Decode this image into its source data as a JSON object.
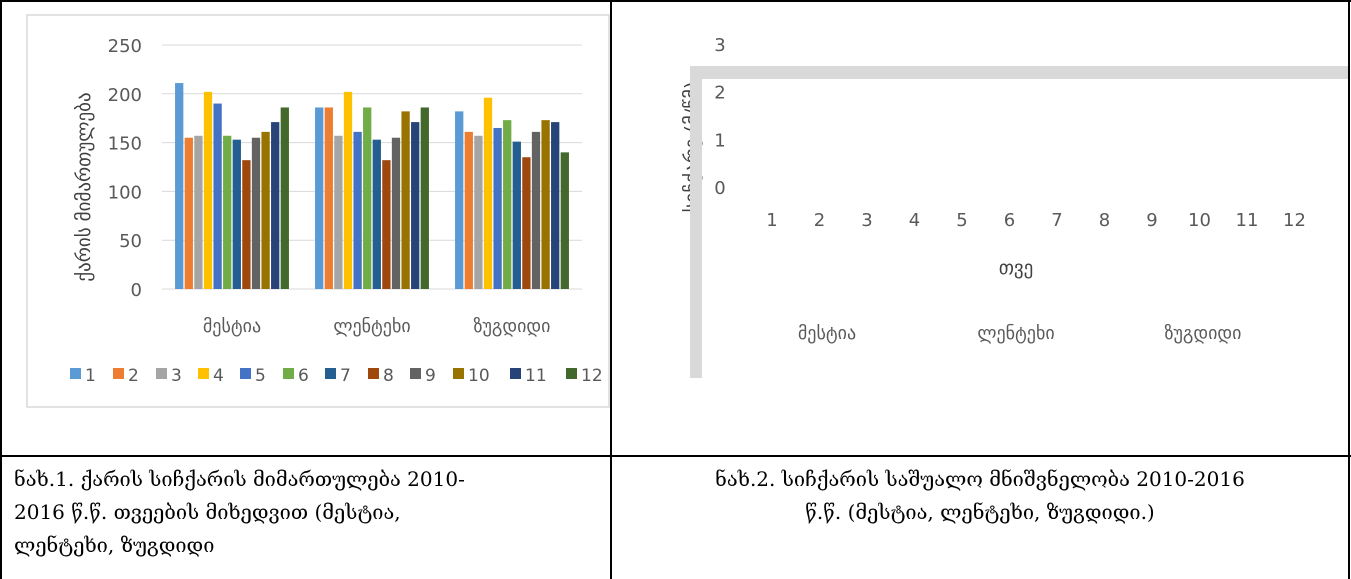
{
  "chart_data": [
    {
      "type": "bar",
      "ylabel": "ქარის მიმართულება",
      "ylim": [
        0,
        250
      ],
      "yticks": [
        0,
        50,
        100,
        150,
        200,
        250
      ],
      "grid": true,
      "legend_position": "bottom",
      "categories": [
        "მესტია",
        "ლენტეხი",
        "ზუგდიდი"
      ],
      "series": [
        {
          "name": "1",
          "color": "#5b9bd5",
          "values": [
            211,
            186,
            182
          ]
        },
        {
          "name": "2",
          "color": "#ed7d31",
          "values": [
            155,
            186,
            161
          ]
        },
        {
          "name": "3",
          "color": "#a5a5a5",
          "values": [
            157,
            157,
            157
          ]
        },
        {
          "name": "4",
          "color": "#ffc000",
          "values": [
            202,
            202,
            196
          ]
        },
        {
          "name": "5",
          "color": "#4472c4",
          "values": [
            190,
            161,
            165
          ]
        },
        {
          "name": "6",
          "color": "#70ad47",
          "values": [
            157,
            186,
            173
          ]
        },
        {
          "name": "7",
          "color": "#255e91",
          "values": [
            153,
            153,
            151
          ]
        },
        {
          "name": "8",
          "color": "#9e480e",
          "values": [
            132,
            132,
            135
          ]
        },
        {
          "name": "9",
          "color": "#636363",
          "values": [
            155,
            155,
            161
          ]
        },
        {
          "name": "10",
          "color": "#997300",
          "values": [
            161,
            182,
            173
          ]
        },
        {
          "name": "11",
          "color": "#264478",
          "values": [
            171,
            171,
            171
          ]
        },
        {
          "name": "12",
          "color": "#43682b",
          "values": [
            186,
            186,
            140
          ]
        }
      ]
    },
    {
      "type": "bar",
      "ylabel": "სიჩქარე (მ/წმ)",
      "xlabel": "თვე",
      "ylim": [
        0,
        3
      ],
      "yticks": [
        0,
        1,
        2,
        3
      ],
      "x_ticks": [
        "1",
        "2",
        "3",
        "4",
        "5",
        "6",
        "7",
        "8",
        "9",
        "10",
        "11",
        "12"
      ],
      "categories": [
        "მესტია",
        "ლენტეხი",
        "ზუგდიდი"
      ]
    }
  ],
  "captions": {
    "left": {
      "line1": "ნახ.1. ქარის სიჩქარის მიმართულება 2010-",
      "line2": "2016 წ.წ. თვეების მიხედვით (მესტია,",
      "line3": "ლენტეხი, ზუგდიდი"
    },
    "right": {
      "line1": "ნახ.2. სიჩქარის საშუალო მნიშვნელობა 2010-2016",
      "line2": "წ.წ. (მესტია, ლენტეხი, ზუგდიდი.)"
    }
  }
}
